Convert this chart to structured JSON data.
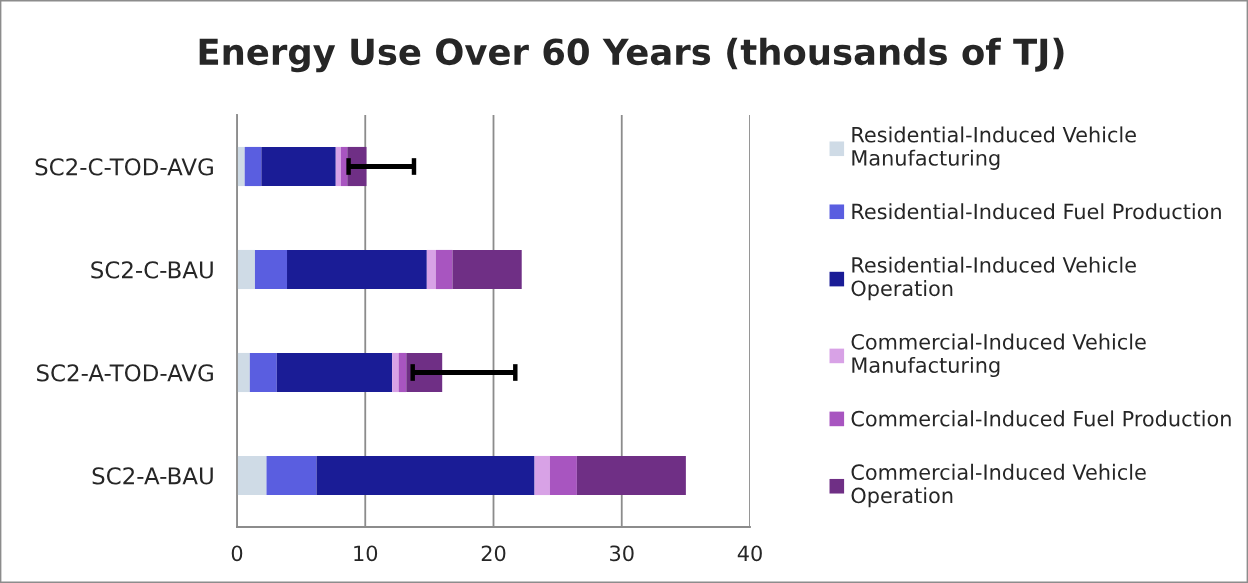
{
  "chart_data": {
    "type": "bar",
    "orientation": "horizontal",
    "stacked": true,
    "title": "Energy Use Over 60 Years (thousands of TJ)",
    "categories": [
      "SC2-C-TOD-AVG",
      "SC2-C-BAU",
      "SC2-A-TOD-AVG",
      "SC2-A-BAU"
    ],
    "series": [
      {
        "name": "Residential-Induced Vehicle Manufacturing",
        "color": "#cfdbe6",
        "values": [
          0.6,
          1.4,
          1.0,
          2.3
        ]
      },
      {
        "name": "Residential-Induced Fuel Production",
        "color": "#5a5ee0",
        "values": [
          1.3,
          2.5,
          2.1,
          3.9
        ]
      },
      {
        "name": "Residential-Induced Vehicle Operation",
        "color": "#1a1c96",
        "values": [
          5.8,
          10.9,
          9.0,
          17.0
        ]
      },
      {
        "name": "Commercial-Induced Vehicle Manufacturing",
        "color": "#d8a2e6",
        "values": [
          0.4,
          0.7,
          0.5,
          1.2
        ]
      },
      {
        "name": "Commercial-Induced Fuel Production",
        "color": "#a855c0",
        "values": [
          0.5,
          1.3,
          0.6,
          2.1
        ]
      },
      {
        "name": "Commercial-Induced Vehicle Operation",
        "color": "#6f2f85",
        "values": [
          1.5,
          5.4,
          2.8,
          8.5
        ],
        "errors": [
          [
            8.7,
            13.8
          ],
          null,
          [
            13.7,
            21.7
          ],
          null
        ]
      }
    ],
    "xlim": [
      0,
      40
    ],
    "xticks": [
      0,
      10,
      20,
      30,
      40
    ],
    "grid": "x",
    "legend": "right"
  }
}
